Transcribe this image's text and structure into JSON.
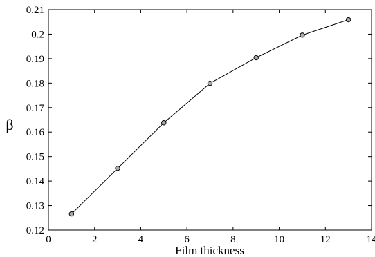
{
  "chart_data": {
    "type": "line",
    "xlabel": "Film thickness",
    "ylabel": "β",
    "xlim": [
      0,
      14
    ],
    "ylim": [
      0.12,
      0.21
    ],
    "x_ticks": [
      0,
      2,
      4,
      6,
      8,
      10,
      12,
      14
    ],
    "x_tick_labels": [
      "0",
      "2",
      "4",
      "6",
      "8",
      "10",
      "12",
      "14"
    ],
    "y_ticks": [
      0.12,
      0.13,
      0.14,
      0.15,
      0.16,
      0.17,
      0.18,
      0.19,
      0.2,
      0.21
    ],
    "y_tick_labels": [
      "0.12",
      "0.13",
      "0.14",
      "0.15",
      "0.16",
      "0.17",
      "0.18",
      "0.19",
      "0.2",
      "0.21"
    ],
    "grid": false,
    "legend": "none",
    "series": [
      {
        "x": [
          1,
          3,
          5,
          7,
          9,
          11,
          13
        ],
        "y": [
          0.1266,
          0.1452,
          0.1638,
          0.1799,
          0.1904,
          0.1996,
          0.2059
        ],
        "line_color": "#000000",
        "marker": "circle",
        "marker_fill": "#aaaaaa"
      }
    ]
  }
}
